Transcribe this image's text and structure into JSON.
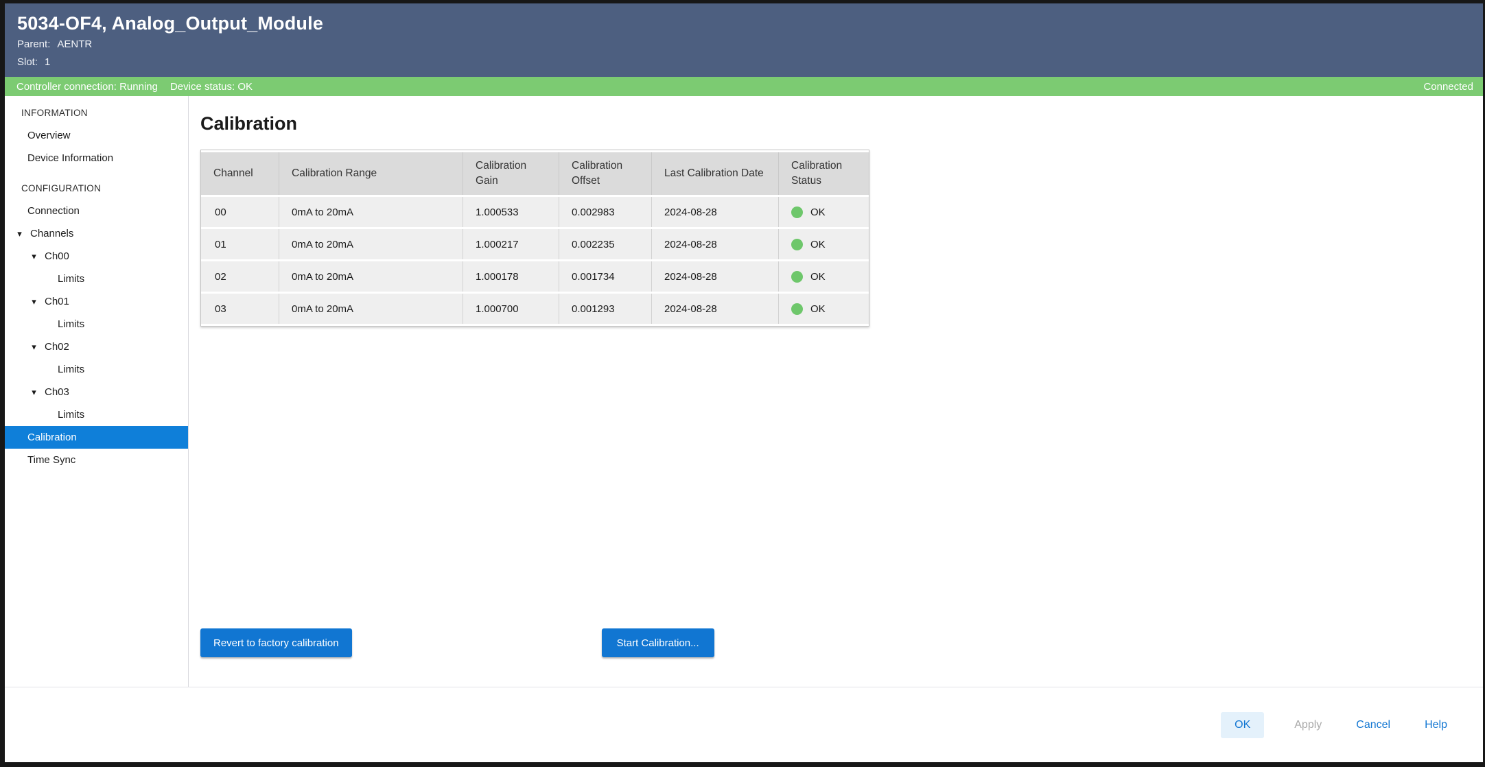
{
  "header": {
    "title": "5034-OF4, Analog_Output_Module",
    "parent_label": "Parent:",
    "parent_value": "AENTR",
    "slot_label": "Slot:",
    "slot_value": "1"
  },
  "status_bar": {
    "controller_connection": "Controller connection: Running",
    "device_status": "Device status: OK",
    "connection_state": "Connected"
  },
  "icons": {
    "expanded_arrow": "▾"
  },
  "sidebar": {
    "items": [
      {
        "label": "INFORMATION",
        "kind": "section"
      },
      {
        "label": "Overview"
      },
      {
        "label": "Device Information"
      },
      {
        "label": "CONFIGURATION",
        "kind": "section"
      },
      {
        "label": "Connection"
      },
      {
        "label": "Channels",
        "expanded": true
      },
      {
        "label": "Ch00",
        "expanded": true
      },
      {
        "label": "Limits"
      },
      {
        "label": "Ch01",
        "expanded": true
      },
      {
        "label": "Limits"
      },
      {
        "label": "Ch02",
        "expanded": true
      },
      {
        "label": "Limits"
      },
      {
        "label": "Ch03",
        "expanded": true
      },
      {
        "label": "Limits"
      },
      {
        "label": "Calibration",
        "selected": true
      },
      {
        "label": "Time Sync"
      }
    ]
  },
  "main": {
    "page_title": "Calibration",
    "table": {
      "columns": [
        "Channel",
        "Calibration Range",
        "Calibration Gain",
        "Calibration Offset",
        "Last Calibration Date",
        "Calibration Status"
      ],
      "rows": [
        {
          "channel": "00",
          "calibration_range": "0mA to 20mA",
          "calibration_gain": "1.000533",
          "calibration_offset": "0.002983",
          "last_calibration_date": "2024-08-28",
          "calibration_status": "OK"
        },
        {
          "channel": "01",
          "calibration_range": "0mA to 20mA",
          "calibration_gain": "1.000217",
          "calibration_offset": "0.002235",
          "last_calibration_date": "2024-08-28",
          "calibration_status": "OK"
        },
        {
          "channel": "02",
          "calibration_range": "0mA to 20mA",
          "calibration_gain": "1.000178",
          "calibration_offset": "0.001734",
          "last_calibration_date": "2024-08-28",
          "calibration_status": "OK"
        },
        {
          "channel": "03",
          "calibration_range": "0mA to 20mA",
          "calibration_gain": "1.000700",
          "calibration_offset": "0.001293",
          "last_calibration_date": "2024-08-28",
          "calibration_status": "OK"
        }
      ]
    },
    "buttons": {
      "revert": "Revert to factory calibration",
      "start": "Start Calibration..."
    }
  },
  "footer": {
    "ok": "OK",
    "apply": "Apply",
    "cancel": "Cancel",
    "help": "Help"
  },
  "colors": {
    "header_background": "#4D5F80",
    "status_bar_background": "#7CCB72",
    "selected_item_background": "#0F7FD9",
    "primary_button": "#1176D2",
    "status_ok_dot": "#6EC76B"
  }
}
